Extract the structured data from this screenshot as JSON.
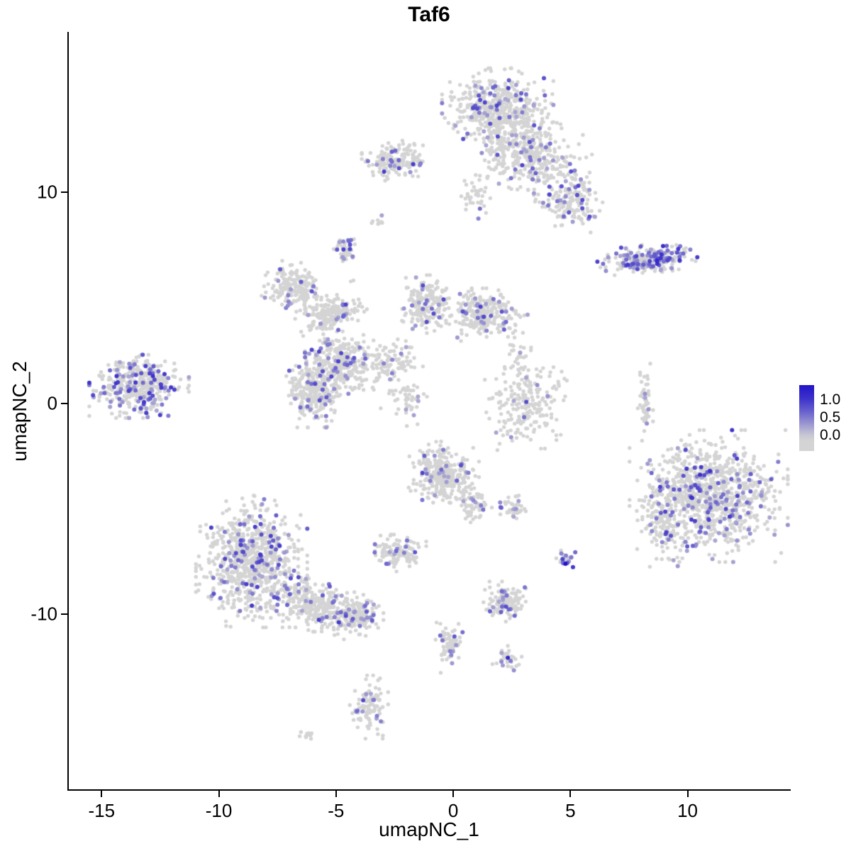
{
  "chart_data": {
    "type": "scatter",
    "title": "Taf6",
    "xlabel": "umapNC_1",
    "ylabel": "umapNC_2",
    "xlim": [
      -16.4,
      14.4
    ],
    "ylim": [
      -18.3,
      17.6
    ],
    "x_ticks": [
      -15,
      -10,
      -5,
      0,
      5,
      10
    ],
    "y_ticks": [
      10,
      0,
      -10
    ],
    "x_tick_labels": [
      "-15",
      "-10",
      "-5",
      "0",
      "5",
      "10"
    ],
    "y_tick_labels": [
      "10",
      "0",
      "-10"
    ],
    "grid": false,
    "legend": {
      "position": "right",
      "labels": [
        "1.0",
        "0.5",
        "0.0"
      ]
    },
    "colors": {
      "low": "#d4d4d4",
      "high": "#2114c9",
      "background": "#ffffff",
      "axis": "#000000"
    },
    "value_range": [
      0,
      1.25
    ],
    "point_radius_px": 2.7,
    "seed": 20240711,
    "clusters": [
      {
        "name": "top-core",
        "cx": 1.9,
        "cy": 14.0,
        "sx": 0.95,
        "sy": 0.75,
        "rot": 0,
        "n": 480,
        "expr_frac": 0.1,
        "expr_scale": 0.6
      },
      {
        "name": "top-lower",
        "cx": 3.3,
        "cy": 11.8,
        "sx": 1.05,
        "sy": 0.75,
        "rot": -0.5,
        "n": 380,
        "expr_frac": 0.1,
        "expr_scale": 0.6
      },
      {
        "name": "top-right-arm",
        "cx": 5.0,
        "cy": 9.6,
        "sx": 0.55,
        "sy": 0.65,
        "rot": 0,
        "n": 160,
        "expr_frac": 0.12,
        "expr_scale": 0.6
      },
      {
        "name": "top-left-small",
        "cx": -2.4,
        "cy": 11.5,
        "sx": 0.6,
        "sy": 0.38,
        "rot": 0,
        "n": 170,
        "expr_frac": 0.12,
        "expr_scale": 0.65
      },
      {
        "name": "bridge-top",
        "cx": 1.0,
        "cy": 9.9,
        "sx": 0.3,
        "sy": 0.6,
        "rot": 0,
        "n": 40,
        "expr_frac": 0.05,
        "expr_scale": 0.5
      },
      {
        "name": "right-streak-high",
        "cx": 8.4,
        "cy": 6.8,
        "sx": 0.95,
        "sy": 0.3,
        "rot": 0.1,
        "n": 230,
        "expr_frac": 0.42,
        "expr_scale": 0.75
      },
      {
        "name": "tiny-left-high",
        "cx": -4.6,
        "cy": 7.3,
        "sx": 0.22,
        "sy": 0.28,
        "rot": 0,
        "n": 45,
        "expr_frac": 0.25,
        "expr_scale": 0.6
      },
      {
        "name": "mid-nw",
        "cx": -6.8,
        "cy": 5.5,
        "sx": 0.55,
        "sy": 0.5,
        "rot": 0,
        "n": 180,
        "expr_frac": 0.1,
        "expr_scale": 0.6
      },
      {
        "name": "mid-w",
        "cx": -5.2,
        "cy": 4.2,
        "sx": 0.6,
        "sy": 0.45,
        "rot": 0.4,
        "n": 210,
        "expr_frac": 0.1,
        "expr_scale": 0.6
      },
      {
        "name": "mid-center",
        "cx": -4.7,
        "cy": 1.9,
        "sx": 0.65,
        "sy": 0.6,
        "rot": 0,
        "n": 290,
        "expr_frac": 0.1,
        "expr_scale": 0.6
      },
      {
        "name": "mid-sw",
        "cx": -5.9,
        "cy": 0.6,
        "sx": 0.5,
        "sy": 0.7,
        "rot": 0,
        "n": 280,
        "expr_frac": 0.1,
        "expr_scale": 0.6
      },
      {
        "name": "mid-n",
        "cx": -1.2,
        "cy": 4.7,
        "sx": 0.45,
        "sy": 0.55,
        "rot": 0,
        "n": 190,
        "expr_frac": 0.1,
        "expr_scale": 0.6
      },
      {
        "name": "mid-ne",
        "cx": 1.3,
        "cy": 4.2,
        "sx": 0.75,
        "sy": 0.5,
        "rot": 0,
        "n": 290,
        "expr_frac": 0.1,
        "expr_scale": 0.6
      },
      {
        "name": "strand-center",
        "cx": -2.7,
        "cy": 1.9,
        "sx": 0.5,
        "sy": 0.5,
        "rot": -0.6,
        "n": 90,
        "expr_frac": 0.08,
        "expr_scale": 0.5
      },
      {
        "name": "strand-center-2",
        "cx": -2.0,
        "cy": 0.3,
        "sx": 0.45,
        "sy": 0.45,
        "rot": -0.6,
        "n": 50,
        "expr_frac": 0.08,
        "expr_scale": 0.5
      },
      {
        "name": "far-left",
        "cx": -13.4,
        "cy": 0.8,
        "sx": 0.85,
        "sy": 0.6,
        "rot": 0,
        "n": 400,
        "expr_frac": 0.22,
        "expr_scale": 0.7
      },
      {
        "name": "mid-east",
        "cx": 3.1,
        "cy": -0.1,
        "sx": 0.7,
        "sy": 0.85,
        "rot": 0,
        "n": 220,
        "expr_frac": 0.06,
        "expr_scale": 0.55
      },
      {
        "name": "east-strand",
        "cx": 8.2,
        "cy": 0.0,
        "sx": 0.13,
        "sy": 0.75,
        "rot": 0,
        "n": 55,
        "expr_frac": 0.06,
        "expr_scale": 0.55
      },
      {
        "name": "right-big",
        "cx": 10.9,
        "cy": -4.4,
        "sx": 1.35,
        "sy": 1.25,
        "rot": 0,
        "n": 950,
        "expr_frac": 0.14,
        "expr_scale": 0.7
      },
      {
        "name": "right-big-west-arm",
        "cx": 8.9,
        "cy": -5.5,
        "sx": 0.35,
        "sy": 0.9,
        "rot": 0,
        "n": 120,
        "expr_frac": 0.12,
        "expr_scale": 0.6
      },
      {
        "name": "center-low",
        "cx": -0.4,
        "cy": -3.4,
        "sx": 0.6,
        "sy": 0.65,
        "rot": 0,
        "n": 310,
        "expr_frac": 0.09,
        "expr_scale": 0.6
      },
      {
        "name": "center-tail",
        "cx": 0.9,
        "cy": -4.9,
        "sx": 0.3,
        "sy": 0.35,
        "rot": 0,
        "n": 60,
        "expr_frac": 0.08,
        "expr_scale": 0.55
      },
      {
        "name": "small-east-low",
        "cx": 2.6,
        "cy": -4.9,
        "sx": 0.3,
        "sy": 0.25,
        "rot": 0,
        "n": 40,
        "expr_frac": 0.08,
        "expr_scale": 0.55
      },
      {
        "name": "bottom-left-core",
        "cx": -8.6,
        "cy": -7.5,
        "sx": 0.95,
        "sy": 1.25,
        "rot": 0,
        "n": 800,
        "expr_frac": 0.11,
        "expr_scale": 0.65
      },
      {
        "name": "bottom-left-arm",
        "cx": -5.7,
        "cy": -9.6,
        "sx": 0.95,
        "sy": 0.5,
        "rot": -0.35,
        "n": 330,
        "expr_frac": 0.1,
        "expr_scale": 0.6
      },
      {
        "name": "bottom-left-tip",
        "cx": -4.1,
        "cy": -10.1,
        "sx": 0.45,
        "sy": 0.4,
        "rot": 0,
        "n": 140,
        "expr_frac": 0.16,
        "expr_scale": 0.65
      },
      {
        "name": "small-center-low",
        "cx": -2.4,
        "cy": -7.1,
        "sx": 0.5,
        "sy": 0.35,
        "rot": 0,
        "n": 115,
        "expr_frac": 0.12,
        "expr_scale": 0.6
      },
      {
        "name": "dense-blue-dot",
        "cx": 4.85,
        "cy": -7.35,
        "sx": 0.18,
        "sy": 0.18,
        "rot": 0,
        "n": 22,
        "expr_frac": 0.55,
        "expr_scale": 0.95
      },
      {
        "name": "low-mid",
        "cx": 2.3,
        "cy": -9.4,
        "sx": 0.42,
        "sy": 0.38,
        "rot": 0,
        "n": 130,
        "expr_frac": 0.12,
        "expr_scale": 0.6
      },
      {
        "name": "strand-low",
        "cx": -0.2,
        "cy": -11.4,
        "sx": 0.28,
        "sy": 0.55,
        "rot": 0,
        "n": 70,
        "expr_frac": 0.1,
        "expr_scale": 0.6
      },
      {
        "name": "small-low",
        "cx": 2.3,
        "cy": -12.2,
        "sx": 0.25,
        "sy": 0.28,
        "rot": 0,
        "n": 35,
        "expr_frac": 0.12,
        "expr_scale": 0.85
      },
      {
        "name": "bottom-small",
        "cx": -3.6,
        "cy": -14.4,
        "sx": 0.33,
        "sy": 0.6,
        "rot": 0,
        "n": 95,
        "expr_frac": 0.13,
        "expr_scale": 0.65
      },
      {
        "name": "bottom-tiny",
        "cx": -6.1,
        "cy": -15.7,
        "sx": 0.18,
        "sy": 0.12,
        "rot": 0,
        "n": 12,
        "expr_frac": 0.0,
        "expr_scale": 0.5
      },
      {
        "name": "sparse-bridge-e",
        "cx": 2.8,
        "cy": 2.2,
        "sx": 0.3,
        "sy": 0.5,
        "rot": 0,
        "n": 25,
        "expr_frac": 0.05,
        "expr_scale": 0.5
      },
      {
        "name": "tiny-ne-dot",
        "cx": -3.1,
        "cy": 8.6,
        "sx": 0.15,
        "sy": 0.12,
        "rot": 0,
        "n": 8,
        "expr_frac": 0.1,
        "expr_scale": 0.5
      }
    ]
  }
}
